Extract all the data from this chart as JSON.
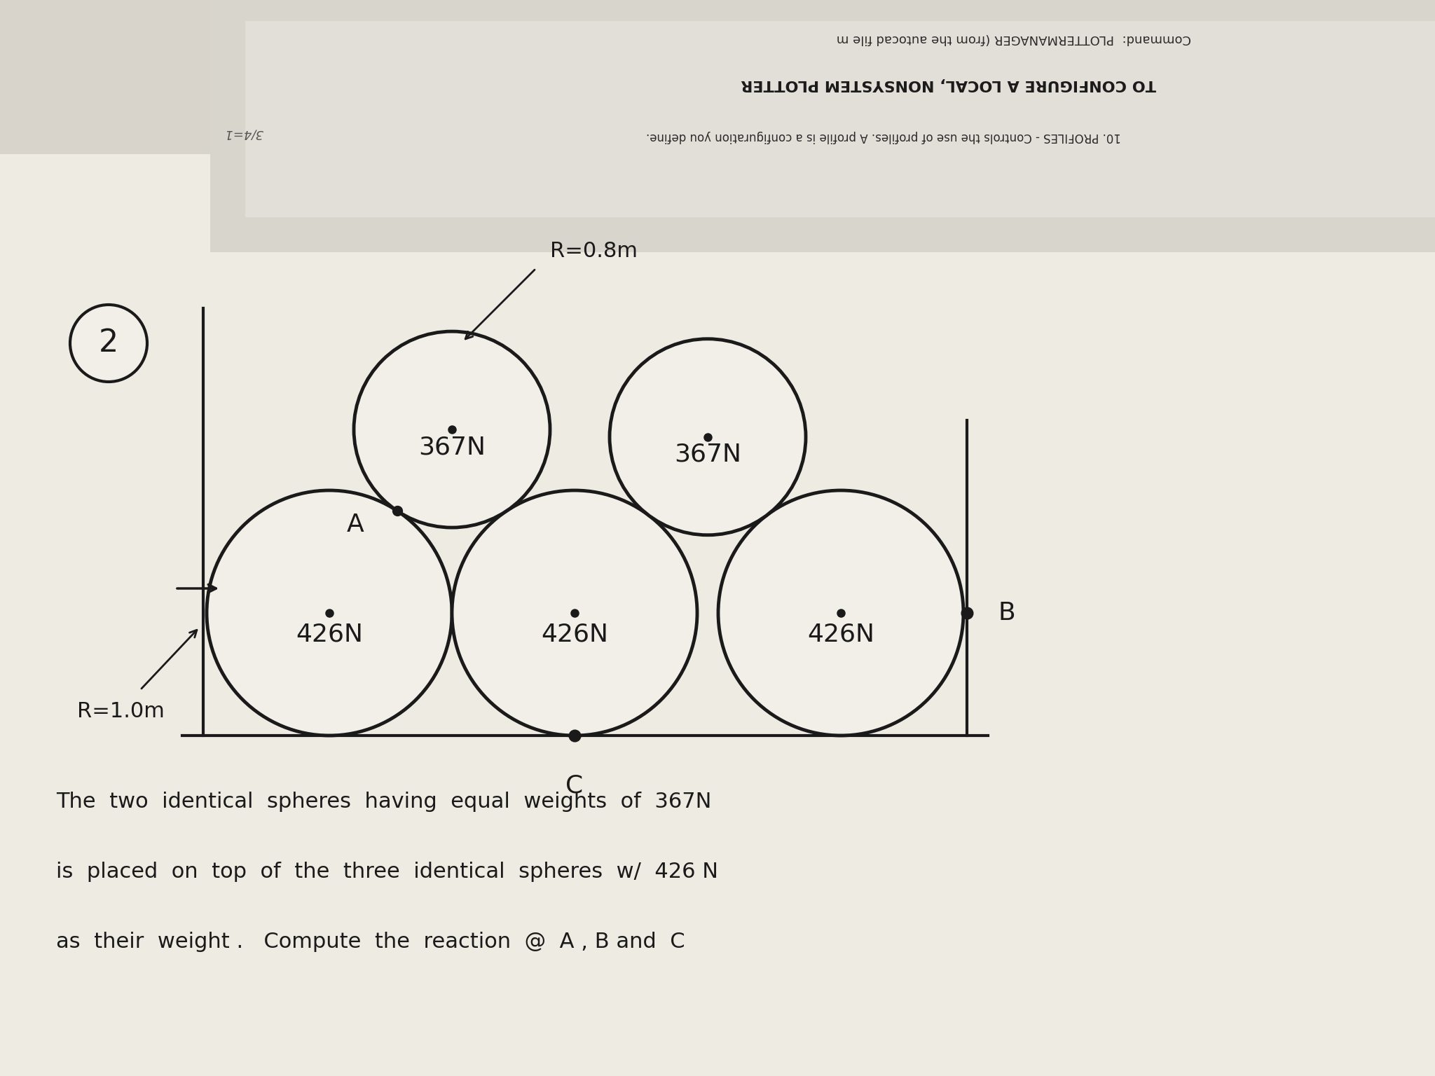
{
  "bg_color": "#d8d4cc",
  "paper_color": "#eeebe3",
  "overlay_color": "#e8e5de",
  "title_top1": "Command:  PLOTTERMANAGER (from the autocad file m",
  "title_top2": "TO CONFIGURE A LOCAL, NONSYSTEM PLOTTER",
  "title_top3": "10. PROFILES - Controls the use of profiles. A profile is a configuration you define.",
  "problem_number": "2",
  "radius_small_label": "R=0.8m",
  "radius_large_label": "R=1.0m",
  "weight_small": "367N",
  "weight_large": "426N",
  "label_A": "A",
  "label_B": "B",
  "label_C": "C",
  "bottom_text_line1": "The  two  identical  spheres  having  equal  weights  of  367N",
  "bottom_text_line2": "is  placed  on  top  of  the  three  identical  spheres  w/  426 N",
  "bottom_text_line3": "as  their  weight .   Compute  the  reaction  @  A , B and  C",
  "sphere_color": "#f2efe8",
  "sphere_edge_color": "#1a1a1a",
  "line_width": 3.0,
  "text_color": "#1a1a1a"
}
